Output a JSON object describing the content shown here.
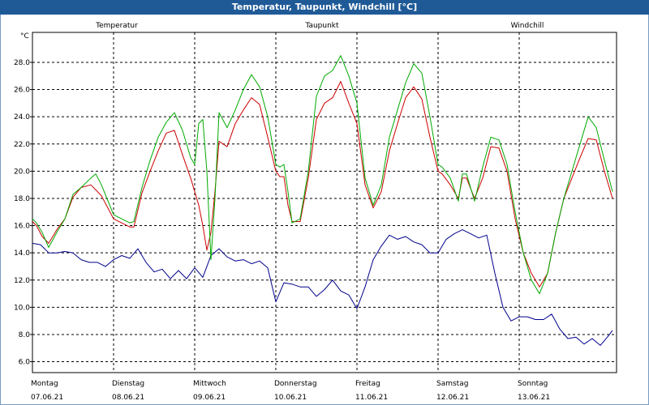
{
  "chart_data": {
    "type": "line",
    "title": "Temperatur, Taupunkt, Windchill [°C]",
    "ylabel": "°C",
    "ylim": [
      5.2,
      30.2
    ],
    "yticks": [
      "6.0",
      "8.0",
      "10.0",
      "12.0",
      "14.0",
      "16.0",
      "18.0",
      "20.0",
      "22.0",
      "24.0",
      "26.0",
      "28.0"
    ],
    "xlim": [
      0,
      7.2
    ],
    "days": [
      {
        "name": "Montag",
        "date": "07.06.21"
      },
      {
        "name": "Dienstag",
        "date": "08.06.21"
      },
      {
        "name": "Mittwoch",
        "date": "09.06.21"
      },
      {
        "name": "Donnerstag",
        "date": "10.06.21"
      },
      {
        "name": "Freitag",
        "date": "11.06.21"
      },
      {
        "name": "Samstag",
        "date": "12.06.21"
      },
      {
        "name": "Sonntag",
        "date": "13.06.21"
      }
    ],
    "series": [
      {
        "name": "Temperatur",
        "color": "#cc0000",
        "x": [
          0,
          0.05,
          0.12,
          0.2,
          0.3,
          0.4,
          0.5,
          0.6,
          0.72,
          0.85,
          1.0,
          1.1,
          1.2,
          1.25,
          1.35,
          1.45,
          1.55,
          1.65,
          1.75,
          1.85,
          1.95,
          2.0,
          2.05,
          2.1,
          2.15,
          2.2,
          2.25,
          2.3,
          2.4,
          2.5,
          2.6,
          2.7,
          2.8,
          2.9,
          3.0,
          3.05,
          3.1,
          3.15,
          3.2,
          3.3,
          3.4,
          3.5,
          3.6,
          3.7,
          3.8,
          3.9,
          4.0,
          4.1,
          4.2,
          4.3,
          4.4,
          4.5,
          4.6,
          4.7,
          4.8,
          4.9,
          5.0,
          5.05,
          5.15,
          5.25,
          5.3,
          5.35,
          5.45,
          5.55,
          5.65,
          5.75,
          5.85,
          5.95,
          6.05,
          6.15,
          6.25,
          6.35,
          6.45,
          6.55,
          6.65,
          6.75,
          6.85,
          6.95,
          7.05,
          7.15
        ],
        "y": [
          16.3,
          16.0,
          15.2,
          14.7,
          15.7,
          16.5,
          18.1,
          18.8,
          19.0,
          18.2,
          16.5,
          16.2,
          15.9,
          15.9,
          18.4,
          20.0,
          21.5,
          22.8,
          23.0,
          21.2,
          19.5,
          18.5,
          17.5,
          16.0,
          14.2,
          15.5,
          18.5,
          22.2,
          21.8,
          23.5,
          24.5,
          25.4,
          24.9,
          22.5,
          20.0,
          19.6,
          19.6,
          17.5,
          16.3,
          16.3,
          19.5,
          23.8,
          25.0,
          25.4,
          26.6,
          25.0,
          23.5,
          19.0,
          17.3,
          18.5,
          21.5,
          23.5,
          25.4,
          26.2,
          25.3,
          22.5,
          20.0,
          19.8,
          19.0,
          18.0,
          19.5,
          19.5,
          18.0,
          19.5,
          21.8,
          21.7,
          20.0,
          16.5,
          14.0,
          12.5,
          11.5,
          12.5,
          15.5,
          18.0,
          19.5,
          21.0,
          22.4,
          22.3,
          20.0,
          18.0
        ]
      },
      {
        "name": "Taupunkt",
        "color": "#00008b",
        "x": [
          0,
          0.1,
          0.2,
          0.3,
          0.4,
          0.5,
          0.6,
          0.7,
          0.8,
          0.9,
          1.0,
          1.1,
          1.2,
          1.3,
          1.4,
          1.5,
          1.6,
          1.7,
          1.8,
          1.9,
          2.0,
          2.1,
          2.2,
          2.3,
          2.4,
          2.5,
          2.6,
          2.7,
          2.8,
          2.9,
          3.0,
          3.1,
          3.2,
          3.3,
          3.4,
          3.5,
          3.6,
          3.7,
          3.8,
          3.9,
          4.0,
          4.1,
          4.2,
          4.3,
          4.4,
          4.5,
          4.6,
          4.7,
          4.8,
          4.9,
          5.0,
          5.1,
          5.2,
          5.3,
          5.4,
          5.5,
          5.6,
          5.7,
          5.8,
          5.9,
          6.0,
          6.1,
          6.2,
          6.3,
          6.4,
          6.5,
          6.6,
          6.7,
          6.8,
          6.9,
          7.0,
          7.1,
          7.15
        ],
        "y": [
          14.7,
          14.6,
          14.0,
          14.0,
          14.1,
          14.0,
          13.5,
          13.3,
          13.3,
          13.0,
          13.5,
          13.8,
          13.6,
          14.3,
          13.3,
          12.6,
          12.8,
          12.1,
          12.7,
          12.1,
          12.9,
          12.2,
          13.8,
          14.3,
          13.7,
          13.4,
          13.5,
          13.2,
          13.4,
          12.9,
          10.4,
          11.8,
          11.7,
          11.5,
          11.5,
          10.8,
          11.3,
          12.0,
          11.2,
          10.9,
          9.9,
          11.5,
          13.5,
          14.5,
          15.3,
          15.0,
          15.2,
          14.8,
          14.6,
          14.0,
          14.0,
          15.0,
          15.4,
          15.7,
          15.4,
          15.1,
          15.3,
          12.5,
          10.0,
          9.0,
          9.3,
          9.3,
          9.1,
          9.1,
          9.5,
          8.4,
          7.7,
          7.8,
          7.3,
          7.7,
          7.2,
          7.9,
          8.3
        ]
      },
      {
        "name": "Windchill",
        "color": "#00aa00",
        "x": [
          0,
          0.05,
          0.12,
          0.2,
          0.3,
          0.4,
          0.5,
          0.6,
          0.72,
          0.78,
          0.85,
          1.0,
          1.1,
          1.2,
          1.25,
          1.35,
          1.45,
          1.55,
          1.65,
          1.75,
          1.85,
          1.95,
          2.0,
          2.05,
          2.1,
          2.15,
          2.2,
          2.25,
          2.3,
          2.4,
          2.5,
          2.6,
          2.7,
          2.8,
          2.9,
          3.0,
          3.05,
          3.1,
          3.15,
          3.2,
          3.3,
          3.4,
          3.5,
          3.6,
          3.7,
          3.8,
          3.9,
          4.0,
          4.1,
          4.2,
          4.3,
          4.4,
          4.5,
          4.6,
          4.7,
          4.8,
          4.9,
          5.0,
          5.05,
          5.15,
          5.25,
          5.3,
          5.35,
          5.45,
          5.55,
          5.65,
          5.75,
          5.85,
          5.95,
          6.05,
          6.15,
          6.25,
          6.35,
          6.45,
          6.55,
          6.65,
          6.75,
          6.85,
          6.95,
          7.05,
          7.15
        ],
        "y": [
          16.5,
          16.2,
          15.5,
          14.4,
          15.5,
          16.5,
          18.3,
          18.8,
          19.5,
          19.8,
          19.0,
          16.8,
          16.5,
          16.2,
          16.3,
          18.8,
          20.8,
          22.5,
          23.6,
          24.3,
          23.0,
          21.0,
          20.5,
          23.5,
          23.8,
          20.0,
          13.5,
          18.0,
          24.3,
          23.2,
          24.5,
          26.0,
          27.1,
          26.2,
          24.0,
          20.5,
          20.3,
          20.5,
          18.5,
          16.2,
          16.5,
          20.0,
          25.5,
          27.0,
          27.4,
          28.5,
          27.0,
          25.0,
          19.5,
          17.5,
          19.0,
          22.5,
          24.5,
          26.5,
          27.9,
          27.2,
          24.0,
          20.5,
          20.3,
          19.5,
          17.8,
          19.8,
          19.8,
          17.8,
          20.3,
          22.5,
          22.3,
          20.5,
          17.0,
          14.0,
          12.0,
          11.0,
          12.5,
          15.5,
          18.0,
          20.0,
          22.0,
          24.0,
          23.2,
          20.8,
          18.5
        ]
      }
    ]
  }
}
